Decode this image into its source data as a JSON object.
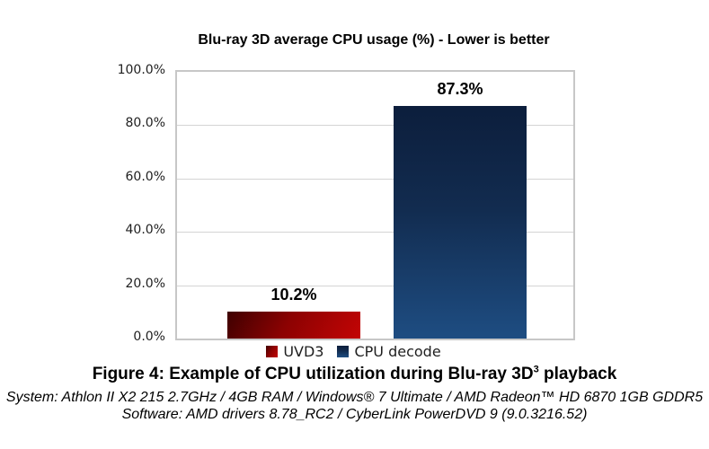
{
  "chart_data": {
    "type": "bar",
    "title": "Blu-ray 3D average CPU usage (%) - Lower is better",
    "categories": [
      "UVD3",
      "CPU decode"
    ],
    "values": [
      10.2,
      87.3
    ],
    "data_labels": [
      "10.2%",
      "87.3%"
    ],
    "yticks": [
      "100.0%",
      "80.0%",
      "60.0%",
      "40.0%",
      "20.0%",
      "0.0%"
    ],
    "ylim": [
      0,
      100
    ],
    "grid": "horizontal",
    "legend_position": "bottom",
    "colors": {
      "uvd3_dark": "#3e0101",
      "uvd3_mid": "#8c0202",
      "uvd3_bright": "#c30505",
      "cpu_dark": "#0c1e3c",
      "cpu_mid": "#122c50",
      "cpu_bright": "#1e4d82",
      "gridline": "#d4d4d4",
      "plot_border": "#c7c7c7"
    }
  },
  "caption": {
    "figure_prefix": "Figure 4: Example of CPU utilization during Blu-ray 3D",
    "figure_sup": "3",
    "figure_suffix": " playback",
    "system_line": "System: Athlon II X2 215 2.7GHz / 4GB RAM / Windows® 7 Ultimate / AMD Radeon™ HD 6870 1GB GDDR5",
    "software_line": "Software: AMD drivers 8.78_RC2 / CyberLink PowerDVD 9 (9.0.3216.52)"
  }
}
